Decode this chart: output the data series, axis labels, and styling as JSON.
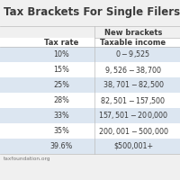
{
  "title": "Tax Brackets For Single Filers",
  "subtitle": "New brackets",
  "col1_header": "Tax rate",
  "col2_header": "Taxable income",
  "rows": [
    [
      "10%",
      "$0-$9,525"
    ],
    [
      "15%",
      "$9,526-$38,700"
    ],
    [
      "25%",
      "$38,701-$82,500"
    ],
    [
      "28%",
      "$82,501-$157,500"
    ],
    [
      "33%",
      "$157,501-$200,000"
    ],
    [
      "35%",
      "$200,001-$500,000"
    ],
    [
      "39.6%",
      "$500,001+"
    ]
  ],
  "shaded_rows": [
    0,
    2,
    4,
    6
  ],
  "row_shade_color": "#dce6f1",
  "bg_color": "#f0f0f0",
  "text_color": "#3a3a3a",
  "footer": "taxfoundation.org",
  "title_fontsize": 8.5,
  "body_fontsize": 5.8,
  "header_fontsize": 6.0
}
